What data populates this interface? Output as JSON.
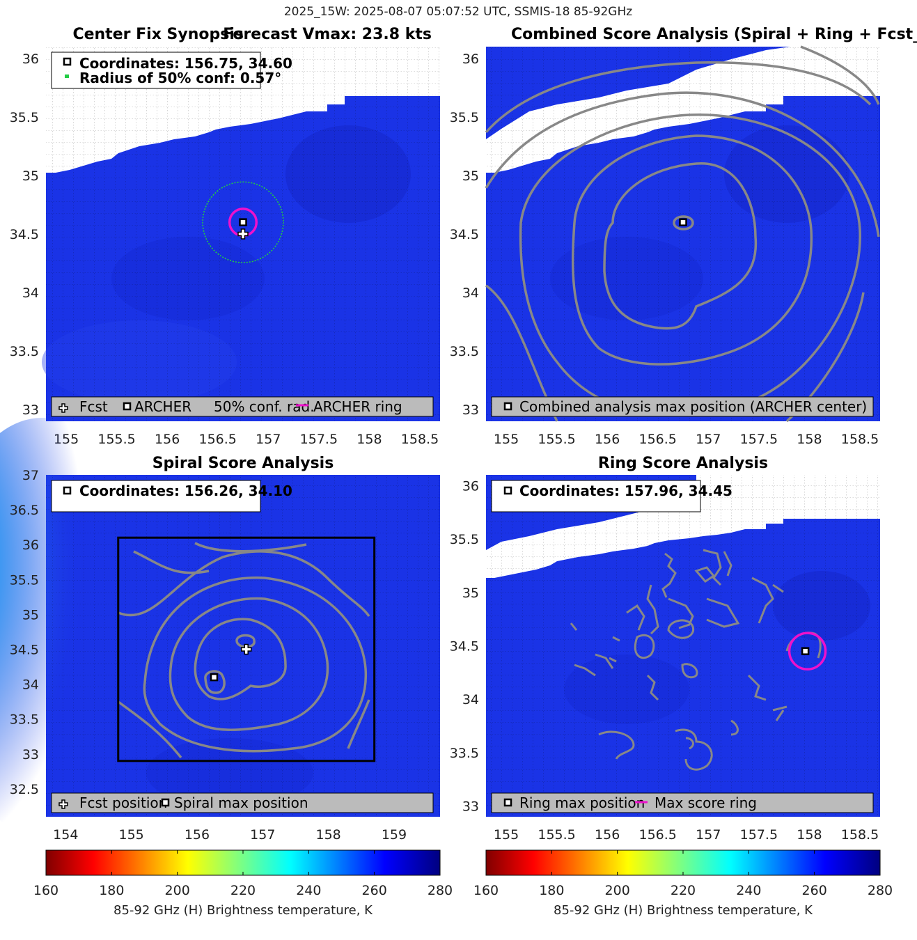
{
  "suptitle": "2025_15W: 2025-08-07 05:07:52 UTC, SSMIS-18 85-92GHz",
  "colors": {
    "ocean": "#1a33e6",
    "land": "#ffffff",
    "contour": "#888888",
    "ring": "#ee11cc",
    "conf": "#22cc44"
  },
  "chart_data": [
    {
      "type": "heatmap",
      "title_left": "Center Fix Synopsis",
      "title_right": "Forecast Vmax: 23.8 kts",
      "xlim": [
        154.8,
        158.7
      ],
      "ylim": [
        32.9,
        36.1
      ],
      "xticks": [
        "155",
        "155.5",
        "156",
        "156.5",
        "157",
        "157.5",
        "158",
        "158.5"
      ],
      "yticks": [
        "36",
        "35.5",
        "35",
        "34.5",
        "34",
        "33.5",
        "33"
      ],
      "info": [
        "Coordinates: 156.75, 34.60",
        "Radius of 50% conf: 0.57°"
      ],
      "legend": [
        "Fcst",
        "ARCHER",
        "50% conf. rad.",
        "ARCHER ring"
      ],
      "archer": [
        156.75,
        34.6
      ],
      "forecast": [
        156.75,
        34.5
      ],
      "conf_radius_deg": 0.57,
      "ring_radius_deg": 0.19
    },
    {
      "type": "heatmap",
      "title": "Combined Score Analysis (Spiral + Ring + Fcst_Pe",
      "xlim": [
        154.8,
        158.7
      ],
      "ylim": [
        32.9,
        36.1
      ],
      "xticks": [
        "155",
        "155.5",
        "156",
        "156.5",
        "157",
        "157.5",
        "158",
        "158.5"
      ],
      "yticks": [
        "36",
        "35.5",
        "35",
        "34.5",
        "34",
        "33.5",
        "33"
      ],
      "legend": [
        "Combined analysis max position (ARCHER center)"
      ],
      "max_position": [
        156.75,
        34.6
      ]
    },
    {
      "type": "heatmap",
      "title": "Spiral Score Analysis",
      "xlim": [
        153.7,
        159.7
      ],
      "ylim": [
        32.1,
        37.0
      ],
      "xticks": [
        "154",
        "155",
        "156",
        "157",
        "158",
        "159"
      ],
      "yticks": [
        "37",
        "36.5",
        "36",
        "35.5",
        "35",
        "34.5",
        "34",
        "33.5",
        "33",
        "32.5"
      ],
      "info": [
        "Coordinates: 156.26, 34.10"
      ],
      "legend": [
        "Fcst position",
        "Spiral max position"
      ],
      "spiral_max": [
        156.26,
        34.1
      ],
      "forecast": [
        156.75,
        34.5
      ],
      "box": {
        "lon": [
          154.8,
          158.7
        ],
        "lat": [
          32.9,
          36.1
        ]
      }
    },
    {
      "type": "heatmap",
      "title": "Ring Score Analysis",
      "xlim": [
        154.8,
        158.7
      ],
      "ylim": [
        32.9,
        36.1
      ],
      "xticks": [
        "155",
        "155.5",
        "156",
        "156.5",
        "157",
        "157.5",
        "158",
        "158.5"
      ],
      "yticks": [
        "36",
        "35.5",
        "35",
        "34.5",
        "34",
        "33.5",
        "33"
      ],
      "info": [
        "Coordinates: 157.96, 34.45"
      ],
      "legend": [
        "Ring max position",
        "Max score ring"
      ],
      "ring_max": [
        157.96,
        34.45
      ]
    }
  ],
  "colorbar": {
    "ticks": [
      "160",
      "180",
      "200",
      "220",
      "240",
      "260",
      "280"
    ],
    "label": "85-92 GHz (H) Brightness temperature, K"
  }
}
